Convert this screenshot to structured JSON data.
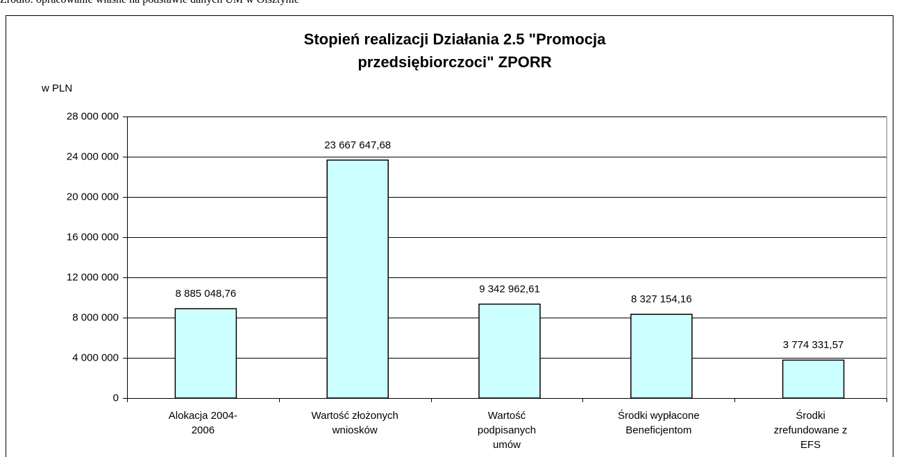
{
  "source": "Źródło: opracowanie własne na podstawie danych UM w Olsztynie",
  "chart_data": {
    "type": "bar",
    "title": "Stopień realizacji Działania 2.5 \"Promocja\nprzedsiębiorczoci\" ZPORR",
    "y_axis_label": "w PLN",
    "categories": [
      "Alokacja 2004-\n2006",
      "Wartość złożonych\nwniosków",
      "Wartość\npodpisanych\numów",
      "Środki wypłacone\nBeneficjentom",
      "Środki\nzrefundowane z\nEFS"
    ],
    "values": [
      8885048.76,
      23667647.68,
      9342962.61,
      8327154.16,
      3774331.57
    ],
    "value_labels": [
      "8 885 048,76",
      "23 667 647,68",
      "9 342 962,61",
      "8 327 154,16",
      "3 774 331,57"
    ],
    "color": "#ccffff",
    "ylim": [
      0,
      28000000
    ],
    "yticks": [
      0,
      {
        "value": 4000000,
        "label": "4 000 000"
      },
      {
        "value": 8000000,
        "label": "8 000 000"
      },
      {
        "value": 12000000,
        "label": "12 000 000"
      },
      {
        "value": 16000000,
        "label": "16 000 000"
      },
      {
        "value": 20000000,
        "label": "20 000 000"
      },
      {
        "value": 24000000,
        "label": "24 000 000"
      },
      {
        "value": 28000000,
        "label": "28 000 000"
      }
    ],
    "grid": true
  }
}
